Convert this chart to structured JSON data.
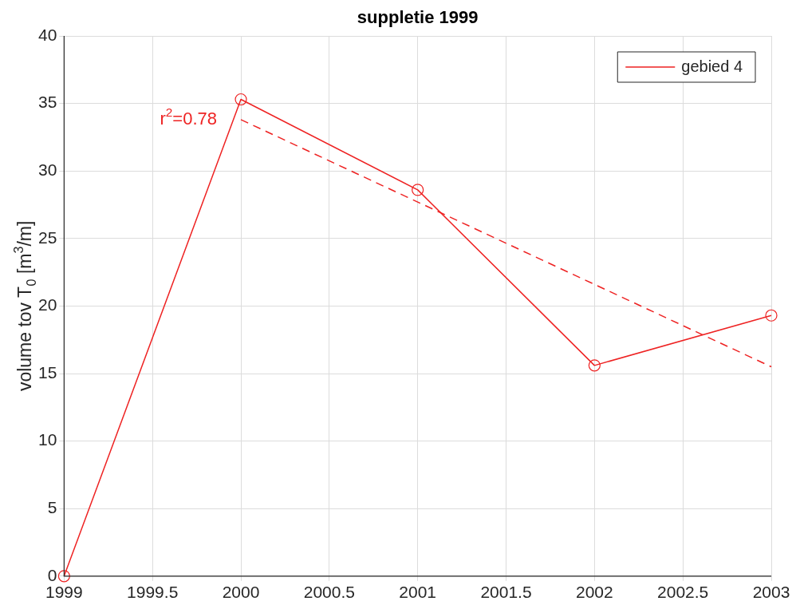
{
  "chart_data": {
    "type": "line",
    "title": "suppletie 1999",
    "ylabel": "volume tov T$_{0}$ [m$^{3}$/m]",
    "x": [
      1999,
      2000,
      2001,
      2002,
      2003
    ],
    "series": [
      {
        "name": "gebied 4",
        "color": "#ee2222",
        "values": [
          0,
          35.3,
          28.6,
          15.6,
          19.3
        ],
        "marker": "circle",
        "line_style": "solid"
      },
      {
        "color": "#ee2222",
        "x": [
          2000,
          2003
        ],
        "values": [
          33.8,
          15.5
        ],
        "marker": "none",
        "line_style": "dashed"
      }
    ],
    "xlim": [
      1999,
      2003
    ],
    "xticks": [
      1999,
      1999.5,
      2000,
      2000.5,
      2001,
      2001.5,
      2002,
      2002.5,
      2003
    ],
    "ylim": [
      0,
      40
    ],
    "yticks": [
      0,
      5,
      10,
      15,
      20,
      25,
      30,
      35,
      40
    ],
    "grid": true,
    "legend": "top right",
    "annotations": [
      "r$^{2}$=0.78"
    ]
  }
}
